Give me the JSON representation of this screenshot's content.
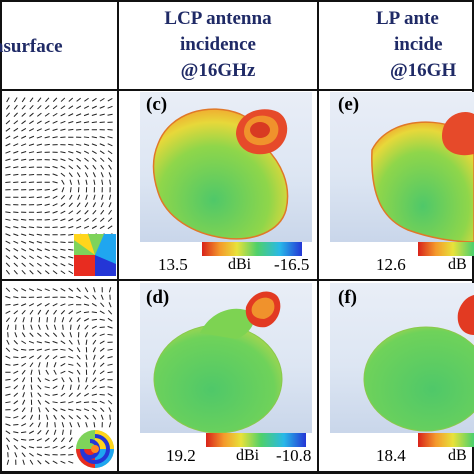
{
  "header": {
    "col1": [
      "asurface"
    ],
    "col2": [
      "LCP antenna",
      "incidence",
      "@16GHz"
    ],
    "col3": [
      "LP ante",
      "incide",
      "@16GH"
    ]
  },
  "panels": {
    "c": {
      "label": "(c)",
      "cb_max": "13.5",
      "cb_unit": "dBi",
      "cb_min": "-16.5"
    },
    "d": {
      "label": "(d)",
      "cb_max": "19.2",
      "cb_unit": "dBi",
      "cb_min": "-10.8"
    },
    "e": {
      "label": "(e)",
      "cb_max": "12.6",
      "cb_unit": "dB"
    },
    "f": {
      "label": "(f)",
      "cb_max": "18.4",
      "cb_unit": "dB"
    }
  },
  "colors": {
    "header_text": "#1f2a66",
    "grid": "#111111",
    "pattern_green": "#5cd06a",
    "pattern_orange": "#f08a2a",
    "pattern_red": "#e0301e"
  }
}
